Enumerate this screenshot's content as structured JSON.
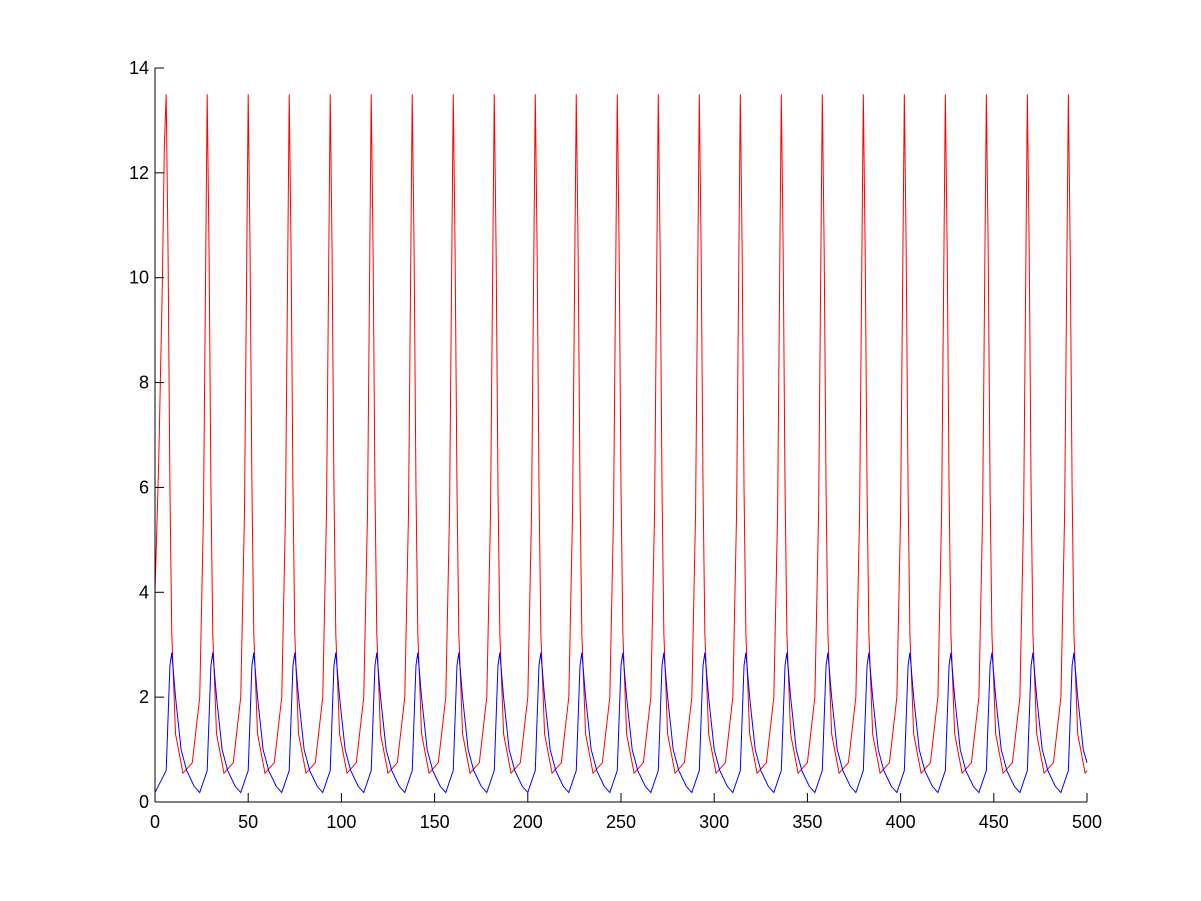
{
  "chart_data": {
    "type": "line",
    "xlim": [
      0,
      500
    ],
    "xticks": [
      0,
      50,
      100,
      150,
      200,
      250,
      300,
      350,
      400,
      450,
      500
    ],
    "ylim": [
      0,
      14
    ],
    "yticks": [
      0,
      2,
      4,
      6,
      8,
      10,
      12,
      14
    ],
    "grid": false,
    "series": [
      {
        "color": "#ff0000",
        "x": [
          0,
          2,
          4,
          5,
          6,
          7,
          8,
          9,
          11,
          15,
          20,
          24,
          26,
          27,
          28,
          29,
          30,
          31,
          33,
          37,
          42,
          46,
          48,
          49,
          50,
          51,
          52,
          53,
          55,
          59,
          64,
          68,
          70,
          71,
          72,
          73,
          74,
          75,
          77,
          81,
          86,
          90,
          92,
          93,
          94,
          95,
          96,
          97,
          99,
          103,
          108,
          112,
          114,
          115,
          116,
          117,
          118,
          119,
          121,
          125,
          130,
          134,
          136,
          137,
          138,
          139,
          140,
          141,
          143,
          147,
          152,
          156,
          158,
          159,
          160,
          161,
          162,
          163,
          165,
          169,
          174,
          178,
          180,
          181,
          182,
          183,
          184,
          185,
          187,
          191,
          196,
          200,
          202,
          203,
          204,
          205,
          206,
          207,
          209,
          213,
          218,
          222,
          224,
          225,
          226,
          227,
          228,
          229,
          231,
          235,
          240,
          244,
          246,
          247,
          248,
          249,
          250,
          251,
          253,
          257,
          262,
          266,
          268,
          269,
          270,
          271,
          272,
          273,
          275,
          279,
          284,
          288,
          290,
          291,
          292,
          293,
          294,
          295,
          297,
          301,
          306,
          310,
          312,
          313,
          314,
          315,
          316,
          317,
          319,
          323,
          328,
          332,
          334,
          335,
          336,
          337,
          338,
          339,
          341,
          345,
          350,
          354,
          356,
          357,
          358,
          359,
          360,
          361,
          363,
          367,
          372,
          376,
          378,
          379,
          380,
          381,
          382,
          383,
          385,
          389,
          394,
          398,
          400,
          401,
          402,
          403,
          404,
          405,
          407,
          411,
          416,
          420,
          422,
          423,
          424,
          425,
          426,
          427,
          429,
          433,
          438,
          442,
          444,
          445,
          446,
          447,
          448,
          449,
          451,
          455,
          460,
          464,
          466,
          467,
          468,
          469,
          470,
          471,
          473,
          477,
          482,
          486,
          488,
          489,
          490,
          491,
          492,
          493,
          495,
          499,
          500
        ],
        "values": [
          4.0,
          6.5,
          10,
          12.5,
          13.5,
          10.5,
          6,
          3.2,
          1.3,
          0.55,
          0.75,
          2.0,
          5.5,
          9.5,
          13.5,
          10.5,
          6,
          3.2,
          1.3,
          0.55,
          0.75,
          2.0,
          5.5,
          9.5,
          13.5,
          10.5,
          6,
          3.2,
          1.3,
          0.55,
          0.75,
          2.0,
          5.5,
          9.5,
          13.5,
          10.5,
          6,
          3.2,
          1.3,
          0.55,
          0.75,
          2.0,
          5.5,
          9.5,
          13.5,
          10.5,
          6,
          3.2,
          1.3,
          0.55,
          0.75,
          2.0,
          5.5,
          9.5,
          13.5,
          10.5,
          6,
          3.2,
          1.3,
          0.55,
          0.75,
          2.0,
          5.5,
          9.5,
          13.5,
          10.5,
          6,
          3.2,
          1.3,
          0.55,
          0.75,
          2.0,
          5.5,
          9.5,
          13.5,
          10.5,
          6,
          3.2,
          1.3,
          0.55,
          0.75,
          2.0,
          5.5,
          9.5,
          13.5,
          10.5,
          6,
          3.2,
          1.3,
          0.55,
          0.75,
          2.0,
          5.5,
          9.5,
          13.5,
          10.5,
          6,
          3.2,
          1.3,
          0.55,
          0.75,
          2.0,
          5.5,
          9.5,
          13.5,
          10.5,
          6,
          3.2,
          1.3,
          0.55,
          0.75,
          2.0,
          5.5,
          9.5,
          13.5,
          10.5,
          6,
          3.2,
          1.3,
          0.55,
          0.75,
          2.0,
          5.5,
          9.5,
          13.5,
          10.5,
          6,
          3.2,
          1.3,
          0.55,
          0.75,
          2.0,
          5.5,
          9.5,
          13.5,
          10.5,
          6,
          3.2,
          1.3,
          0.55,
          0.75,
          2.0,
          5.5,
          9.5,
          13.5,
          10.5,
          6,
          3.2,
          1.3,
          0.55,
          0.75,
          2.0,
          5.5,
          9.5,
          13.5,
          10.5,
          6,
          3.2,
          1.3,
          0.55,
          0.75,
          2.0,
          5.5,
          9.5,
          13.5,
          10.5,
          6,
          3.2,
          1.3,
          0.55,
          0.75,
          2.0,
          5.5,
          9.5,
          13.5,
          10.5,
          6,
          3.2,
          1.3,
          0.55,
          0.75,
          2.0,
          5.5,
          9.5,
          13.5,
          10.5,
          6,
          3.2,
          1.3,
          0.55,
          0.75,
          2.0,
          5.5,
          9.5,
          13.5,
          10.5,
          6,
          3.2,
          1.3,
          0.55,
          0.75,
          2.0,
          5.5,
          9.5,
          13.5,
          10.5,
          6,
          3.2,
          1.3,
          0.55,
          0.75,
          2.0,
          5.5,
          9.5,
          13.5,
          10.5,
          6,
          3.2,
          1.3,
          0.55,
          0.75,
          2.0,
          5.5,
          9.5,
          13.5,
          10.5,
          6,
          3.2,
          1.3,
          0.55,
          0.6
        ]
      },
      {
        "color": "#0000ff",
        "x": [
          0,
          6,
          8,
          9,
          11,
          14,
          17,
          21,
          24,
          28,
          30,
          31,
          33,
          36,
          39,
          43,
          46,
          50,
          52,
          53,
          55,
          58,
          61,
          65,
          68,
          72,
          74,
          75,
          77,
          80,
          83,
          87,
          90,
          94,
          96,
          97,
          99,
          102,
          105,
          109,
          112,
          116,
          118,
          119,
          121,
          124,
          127,
          131,
          134,
          138,
          140,
          141,
          143,
          146,
          149,
          153,
          156,
          160,
          162,
          163,
          165,
          168,
          171,
          175,
          178,
          182,
          184,
          185,
          187,
          190,
          193,
          197,
          200,
          204,
          206,
          207,
          209,
          212,
          215,
          219,
          222,
          226,
          228,
          229,
          231,
          234,
          237,
          241,
          244,
          248,
          250,
          251,
          253,
          256,
          259,
          263,
          266,
          270,
          272,
          273,
          275,
          278,
          281,
          285,
          288,
          292,
          294,
          295,
          297,
          300,
          303,
          307,
          310,
          314,
          316,
          317,
          319,
          322,
          325,
          329,
          332,
          336,
          338,
          339,
          341,
          344,
          347,
          351,
          354,
          358,
          360,
          361,
          363,
          366,
          369,
          373,
          376,
          380,
          382,
          383,
          385,
          388,
          391,
          395,
          398,
          402,
          404,
          405,
          407,
          410,
          413,
          417,
          420,
          424,
          426,
          427,
          429,
          432,
          435,
          439,
          442,
          446,
          448,
          449,
          451,
          454,
          457,
          461,
          464,
          468,
          470,
          471,
          473,
          476,
          479,
          483,
          486,
          490,
          492,
          493,
          495,
          498,
          500
        ],
        "values": [
          0.18,
          0.6,
          2.6,
          2.85,
          2.0,
          1.0,
          0.6,
          0.3,
          0.18,
          0.6,
          2.6,
          2.85,
          2.0,
          1.0,
          0.6,
          0.3,
          0.18,
          0.6,
          2.6,
          2.85,
          2.0,
          1.0,
          0.6,
          0.3,
          0.18,
          0.6,
          2.6,
          2.85,
          2.0,
          1.0,
          0.6,
          0.3,
          0.18,
          0.6,
          2.6,
          2.85,
          2.0,
          1.0,
          0.6,
          0.3,
          0.18,
          0.6,
          2.6,
          2.85,
          2.0,
          1.0,
          0.6,
          0.3,
          0.18,
          0.6,
          2.6,
          2.85,
          2.0,
          1.0,
          0.6,
          0.3,
          0.18,
          0.6,
          2.6,
          2.85,
          2.0,
          1.0,
          0.6,
          0.3,
          0.18,
          0.6,
          2.6,
          2.85,
          2.0,
          1.0,
          0.6,
          0.3,
          0.18,
          0.6,
          2.6,
          2.85,
          2.0,
          1.0,
          0.6,
          0.3,
          0.18,
          0.6,
          2.6,
          2.85,
          2.0,
          1.0,
          0.6,
          0.3,
          0.18,
          0.6,
          2.6,
          2.85,
          2.0,
          1.0,
          0.6,
          0.3,
          0.18,
          0.6,
          2.6,
          2.85,
          2.0,
          1.0,
          0.6,
          0.3,
          0.18,
          0.6,
          2.6,
          2.85,
          2.0,
          1.0,
          0.6,
          0.3,
          0.18,
          0.6,
          2.6,
          2.85,
          2.0,
          1.0,
          0.6,
          0.3,
          0.18,
          0.6,
          2.6,
          2.85,
          2.0,
          1.0,
          0.6,
          0.3,
          0.18,
          0.6,
          2.6,
          2.85,
          2.0,
          1.0,
          0.6,
          0.3,
          0.18,
          0.6,
          2.6,
          2.85,
          2.0,
          1.0,
          0.6,
          0.3,
          0.18,
          0.6,
          2.6,
          2.85,
          2.0,
          1.0,
          0.6,
          0.3,
          0.18,
          0.6,
          2.6,
          2.85,
          2.0,
          1.0,
          0.6,
          0.3,
          0.18,
          0.6,
          2.6,
          2.85,
          2.0,
          1.0,
          0.6,
          0.3,
          0.18,
          0.6,
          2.6,
          2.85,
          2.0,
          1.0,
          0.6,
          0.3,
          0.18,
          0.6,
          2.6,
          2.85,
          2.0,
          1.0,
          0.75
        ]
      },
      {
        "color": "#00cc00",
        "x": [
          0,
          500
        ],
        "values": [
          0,
          0
        ]
      },
      {
        "color": "#000000",
        "x": [
          0,
          85
        ],
        "values": [
          0,
          0
        ]
      }
    ]
  }
}
